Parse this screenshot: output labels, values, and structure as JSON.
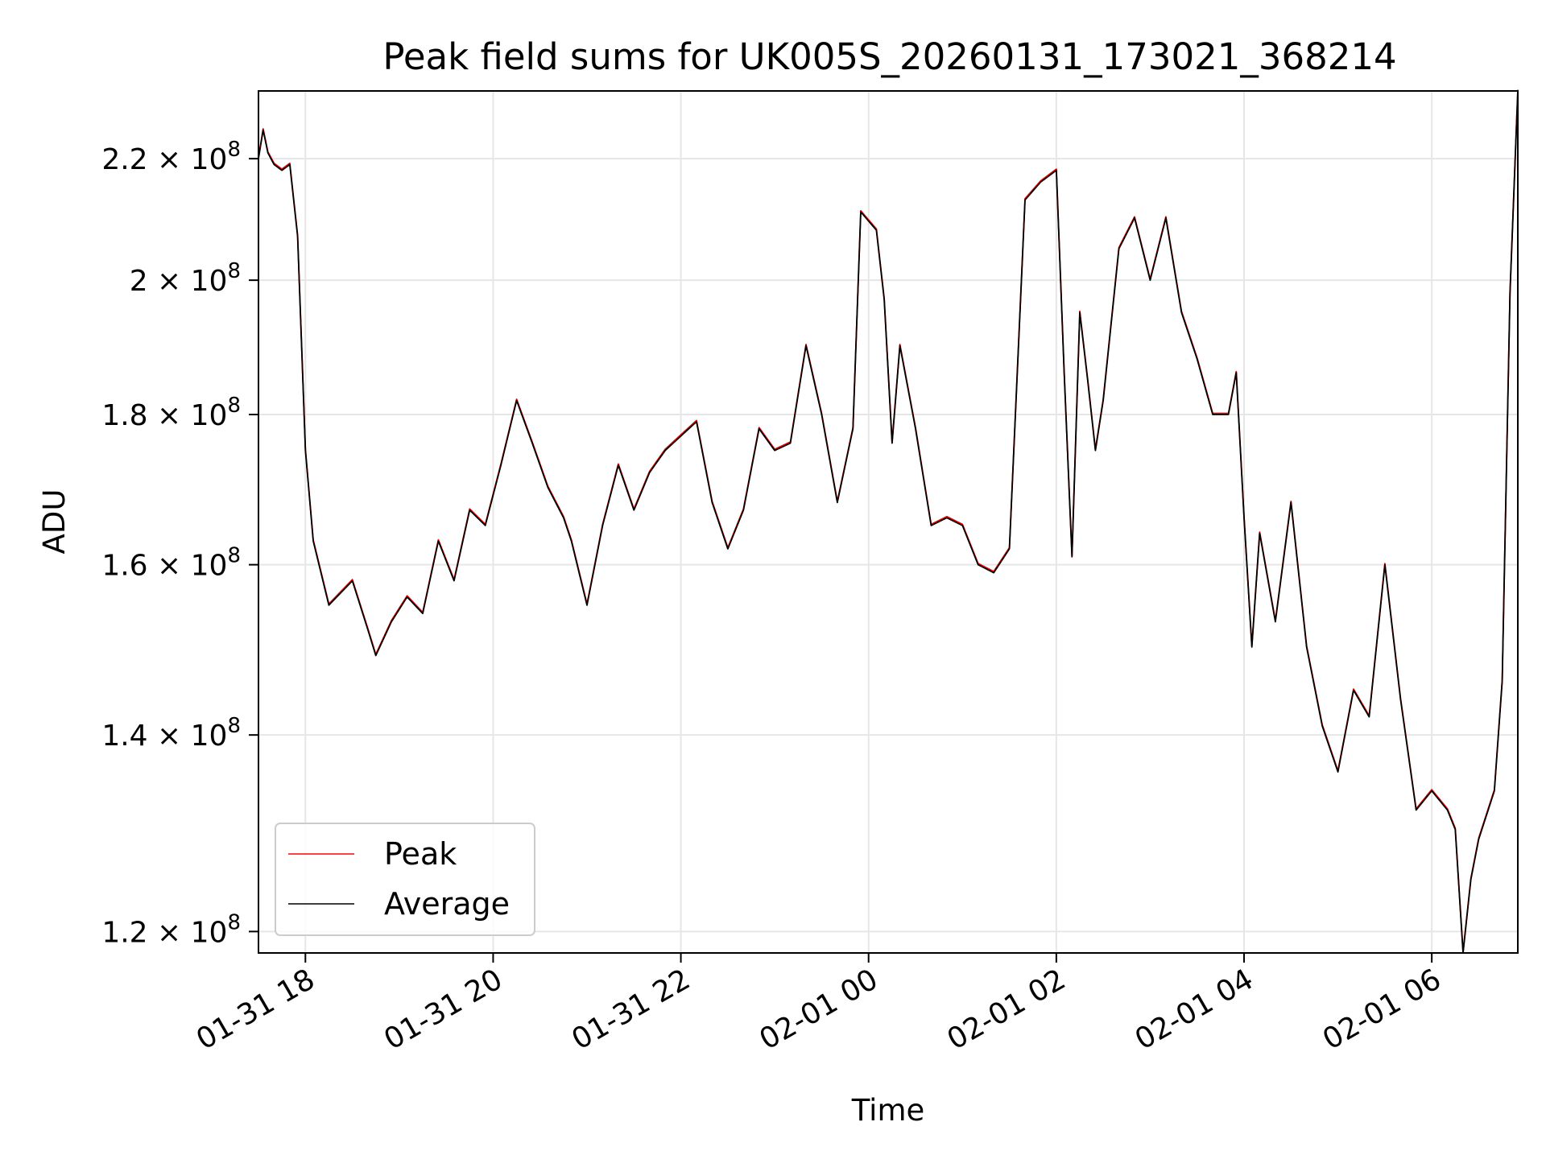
{
  "chart_data": {
    "type": "line",
    "title": "Peak field sums for UK005S_20260131_173021_368214",
    "xlabel": "Time",
    "ylabel": "ADU",
    "y_scale": "log",
    "grid": true,
    "legend_position": "lower-left",
    "xlim": [
      "2026-01-31T17:30",
      "2026-02-01T06:55"
    ],
    "ylim": [
      118000000,
      232000000
    ],
    "x_ticks": [
      {
        "value": "2026-01-31T18:00",
        "label": "01-31 18"
      },
      {
        "value": "2026-01-31T20:00",
        "label": "01-31 20"
      },
      {
        "value": "2026-01-31T22:00",
        "label": "01-31 22"
      },
      {
        "value": "2026-02-01T00:00",
        "label": "02-01 00"
      },
      {
        "value": "2026-02-01T02:00",
        "label": "02-01 02"
      },
      {
        "value": "2026-02-01T04:00",
        "label": "02-01 04"
      },
      {
        "value": "2026-02-01T06:00",
        "label": "02-01 06"
      }
    ],
    "y_ticks": [
      {
        "value": 120000000,
        "mantissa": "1.2",
        "exponent": "8"
      },
      {
        "value": 140000000,
        "mantissa": "1.4",
        "exponent": "8"
      },
      {
        "value": 160000000,
        "mantissa": "1.6",
        "exponent": "8"
      },
      {
        "value": 180000000,
        "mantissa": "1.8",
        "exponent": "8"
      },
      {
        "value": 200000000,
        "mantissa": "2",
        "exponent": "8"
      },
      {
        "value": 220000000,
        "mantissa": "2.2",
        "exponent": "8"
      }
    ],
    "tick_times_symbol": "×",
    "tick_base": "10",
    "series": [
      {
        "name": "Peak",
        "color": "#ff0000"
      },
      {
        "name": "Average",
        "color": "#000000"
      }
    ],
    "x": [
      "2026-01-31T17:30",
      "2026-01-31T17:33",
      "2026-01-31T17:36",
      "2026-01-31T17:40",
      "2026-01-31T17:45",
      "2026-01-31T17:50",
      "2026-01-31T17:55",
      "2026-01-31T18:00",
      "2026-01-31T18:05",
      "2026-01-31T18:15",
      "2026-01-31T18:30",
      "2026-01-31T18:40",
      "2026-01-31T18:45",
      "2026-01-31T18:55",
      "2026-01-31T19:05",
      "2026-01-31T19:15",
      "2026-01-31T19:25",
      "2026-01-31T19:35",
      "2026-01-31T19:45",
      "2026-01-31T19:55",
      "2026-01-31T20:05",
      "2026-01-31T20:15",
      "2026-01-31T20:25",
      "2026-01-31T20:35",
      "2026-01-31T20:45",
      "2026-01-31T20:50",
      "2026-01-31T21:00",
      "2026-01-31T21:10",
      "2026-01-31T21:20",
      "2026-01-31T21:30",
      "2026-01-31T21:40",
      "2026-01-31T21:50",
      "2026-01-31T22:00",
      "2026-01-31T22:10",
      "2026-01-31T22:20",
      "2026-01-31T22:30",
      "2026-01-31T22:40",
      "2026-01-31T22:50",
      "2026-01-31T23:00",
      "2026-01-31T23:10",
      "2026-01-31T23:20",
      "2026-01-31T23:30",
      "2026-01-31T23:40",
      "2026-01-31T23:50",
      "2026-01-31T23:55",
      "2026-02-01T00:05",
      "2026-02-01T00:10",
      "2026-02-01T00:15",
      "2026-02-01T00:20",
      "2026-02-01T00:30",
      "2026-02-01T00:40",
      "2026-02-01T00:50",
      "2026-02-01T01:00",
      "2026-02-01T01:10",
      "2026-02-01T01:20",
      "2026-02-01T01:30",
      "2026-02-01T01:40",
      "2026-02-01T01:50",
      "2026-02-01T02:00",
      "2026-02-01T02:05",
      "2026-02-01T02:10",
      "2026-02-01T02:15",
      "2026-02-01T02:20",
      "2026-02-01T02:25",
      "2026-02-01T02:30",
      "2026-02-01T02:40",
      "2026-02-01T02:50",
      "2026-02-01T03:00",
      "2026-02-01T03:10",
      "2026-02-01T03:20",
      "2026-02-01T03:30",
      "2026-02-01T03:40",
      "2026-02-01T03:50",
      "2026-02-01T03:55",
      "2026-02-01T04:00",
      "2026-02-01T04:05",
      "2026-02-01T04:10",
      "2026-02-01T04:20",
      "2026-02-01T04:30",
      "2026-02-01T04:40",
      "2026-02-01T04:50",
      "2026-02-01T05:00",
      "2026-02-01T05:10",
      "2026-02-01T05:20",
      "2026-02-01T05:30",
      "2026-02-01T05:40",
      "2026-02-01T05:50",
      "2026-02-01T06:00",
      "2026-02-01T06:10",
      "2026-02-01T06:15",
      "2026-02-01T06:20",
      "2026-02-01T06:25",
      "2026-02-01T06:30",
      "2026-02-01T06:40",
      "2026-02-01T06:45",
      "2026-02-01T06:50",
      "2026-02-01T06:55"
    ],
    "values": [
      220000000,
      225000000,
      221000000,
      219000000,
      218000000,
      219000000,
      207000000,
      175000000,
      163000000,
      155000000,
      158000000,
      152000000,
      149000000,
      153000000,
      156000000,
      154000000,
      163000000,
      158000000,
      167000000,
      165000000,
      173000000,
      182000000,
      176000000,
      170000000,
      166000000,
      163000000,
      155000000,
      165000000,
      173000000,
      167000000,
      172000000,
      175000000,
      177000000,
      179000000,
      168000000,
      162000000,
      167000000,
      178000000,
      175000000,
      176000000,
      190000000,
      180000000,
      168000000,
      178000000,
      211000000,
      208000000,
      197000000,
      176000000,
      190000000,
      178000000,
      165000000,
      166000000,
      165000000,
      160000000,
      159000000,
      162000000,
      213000000,
      216000000,
      218000000,
      186000000,
      161000000,
      195000000,
      185000000,
      175000000,
      182000000,
      205000000,
      210000000,
      200000000,
      210000000,
      195000000,
      188000000,
      180000000,
      180000000,
      186000000,
      166000000,
      150000000,
      164000000,
      153000000,
      168000000,
      150000000,
      141000000,
      136000000,
      145000000,
      142000000,
      160000000,
      144000000,
      132000000,
      134000000,
      132000000,
      130000000,
      118000000,
      125000000,
      129000000,
      134000000,
      146000000,
      198000000,
      232000000
    ]
  }
}
